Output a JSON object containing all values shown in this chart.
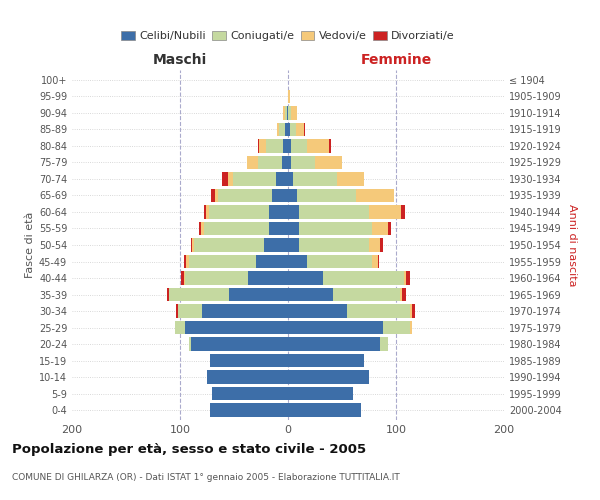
{
  "age_groups": [
    "0-4",
    "5-9",
    "10-14",
    "15-19",
    "20-24",
    "25-29",
    "30-34",
    "35-39",
    "40-44",
    "45-49",
    "50-54",
    "55-59",
    "60-64",
    "65-69",
    "70-74",
    "75-79",
    "80-84",
    "85-89",
    "90-94",
    "95-99",
    "100+"
  ],
  "birth_years": [
    "2000-2004",
    "1995-1999",
    "1990-1994",
    "1985-1989",
    "1980-1984",
    "1975-1979",
    "1970-1974",
    "1965-1969",
    "1960-1964",
    "1955-1959",
    "1950-1954",
    "1945-1949",
    "1940-1944",
    "1935-1939",
    "1930-1934",
    "1925-1929",
    "1920-1924",
    "1915-1919",
    "1910-1914",
    "1905-1909",
    "≤ 1904"
  ],
  "colors": {
    "celibe": "#3d6ea8",
    "coniugato": "#c5d9a0",
    "vedovo": "#f5c97a",
    "divorziato": "#cc2222"
  },
  "maschi": {
    "celibe": [
      72,
      70,
      75,
      72,
      90,
      95,
      80,
      55,
      37,
      30,
      22,
      18,
      18,
      15,
      11,
      6,
      5,
      3,
      1,
      0,
      0
    ],
    "coniugato": [
      0,
      0,
      0,
      0,
      2,
      10,
      22,
      55,
      58,
      62,
      65,
      60,
      55,
      50,
      40,
      22,
      15,
      5,
      2,
      0,
      0
    ],
    "vedovo": [
      0,
      0,
      0,
      0,
      0,
      0,
      0,
      0,
      1,
      2,
      2,
      3,
      3,
      3,
      5,
      10,
      7,
      2,
      2,
      0,
      0
    ],
    "divorziato": [
      0,
      0,
      0,
      0,
      0,
      0,
      2,
      2,
      3,
      2,
      1,
      1,
      2,
      3,
      5,
      0,
      1,
      0,
      0,
      0,
      0
    ]
  },
  "femmine": {
    "nubile": [
      68,
      60,
      75,
      70,
      85,
      88,
      55,
      42,
      32,
      18,
      10,
      10,
      10,
      8,
      5,
      3,
      3,
      2,
      0,
      0,
      0
    ],
    "coniugata": [
      0,
      0,
      0,
      0,
      8,
      25,
      58,
      62,
      75,
      60,
      65,
      68,
      65,
      55,
      40,
      22,
      15,
      5,
      3,
      0,
      0
    ],
    "vedova": [
      0,
      0,
      0,
      0,
      0,
      2,
      2,
      2,
      2,
      5,
      10,
      15,
      30,
      35,
      25,
      25,
      20,
      8,
      5,
      2,
      0
    ],
    "divorziata": [
      0,
      0,
      0,
      0,
      0,
      0,
      3,
      3,
      4,
      1,
      3,
      2,
      3,
      0,
      0,
      0,
      2,
      1,
      0,
      0,
      0
    ]
  },
  "title": "Popolazione per età, sesso e stato civile - 2005",
  "subtitle": "COMUNE DI GHILARZA (OR) - Dati ISTAT 1° gennaio 2005 - Elaborazione TUTTITALIA.IT",
  "xlabel_left": "Maschi",
  "xlabel_right": "Femmine",
  "ylabel_left": "Fasce di età",
  "ylabel_right": "Anni di nascita",
  "xlim": 200,
  "background_color": "#ffffff",
  "grid_color": "#cccccc",
  "legend_labels": [
    "Celibi/Nubili",
    "Coniugati/e",
    "Vedovi/e",
    "Divorziati/e"
  ]
}
